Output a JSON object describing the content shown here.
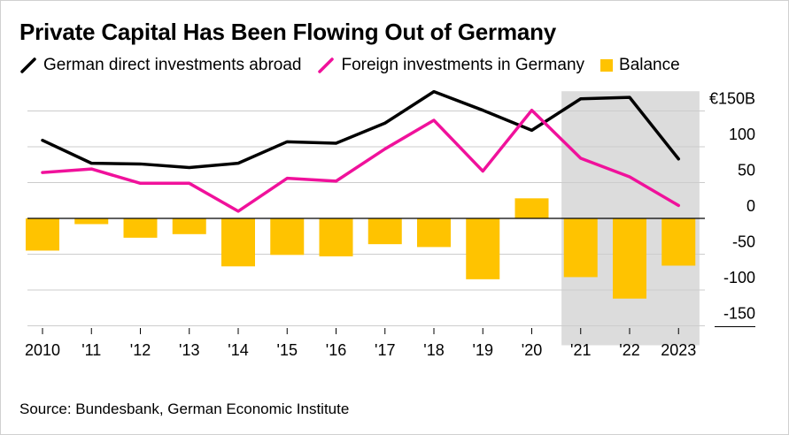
{
  "title": "Private Capital Has Been Flowing Out of Germany",
  "source": "Source: Bundesbank, German Economic Institute",
  "colors": {
    "abroad": "#000000",
    "foreign": "#f0119b",
    "balance": "#ffc300",
    "shade": "#dcdcdc",
    "grid": "#cccccc"
  },
  "chart_data": {
    "type": "bar+line",
    "categories": [
      "2010",
      "'11",
      "'12",
      "'13",
      "'14",
      "'15",
      "'16",
      "'17",
      "'18",
      "'19",
      "'20",
      "'21",
      "'22",
      "2023"
    ],
    "series": [
      {
        "name": "German direct investments abroad",
        "type": "line",
        "values": [
          109,
          77,
          76,
          71,
          77,
          107,
          105,
          133,
          177,
          151,
          123,
          167,
          169,
          83
        ]
      },
      {
        "name": "Foreign investments in Germany",
        "type": "line",
        "values": [
          64,
          69,
          49,
          49,
          10,
          56,
          52,
          97,
          137,
          66,
          151,
          84,
          58,
          18
        ]
      },
      {
        "name": "Balance",
        "type": "bar",
        "values": [
          -45,
          -8,
          -27,
          -22,
          -67,
          -51,
          -53,
          -36,
          -40,
          -85,
          28,
          -82,
          -112,
          -66
        ]
      }
    ],
    "y_ticks": [
      {
        "value": 150,
        "label": "€150B"
      },
      {
        "value": 100,
        "label": "100"
      },
      {
        "value": 50,
        "label": "50"
      },
      {
        "value": 0,
        "label": "0"
      },
      {
        "value": -50,
        "label": "-50"
      },
      {
        "value": -100,
        "label": "-100"
      },
      {
        "value": -150,
        "label": "-150"
      }
    ],
    "ylim": [
      -150,
      180
    ],
    "grid": true,
    "legend_position": "top",
    "shaded_range": [
      "'21",
      "2023"
    ]
  }
}
